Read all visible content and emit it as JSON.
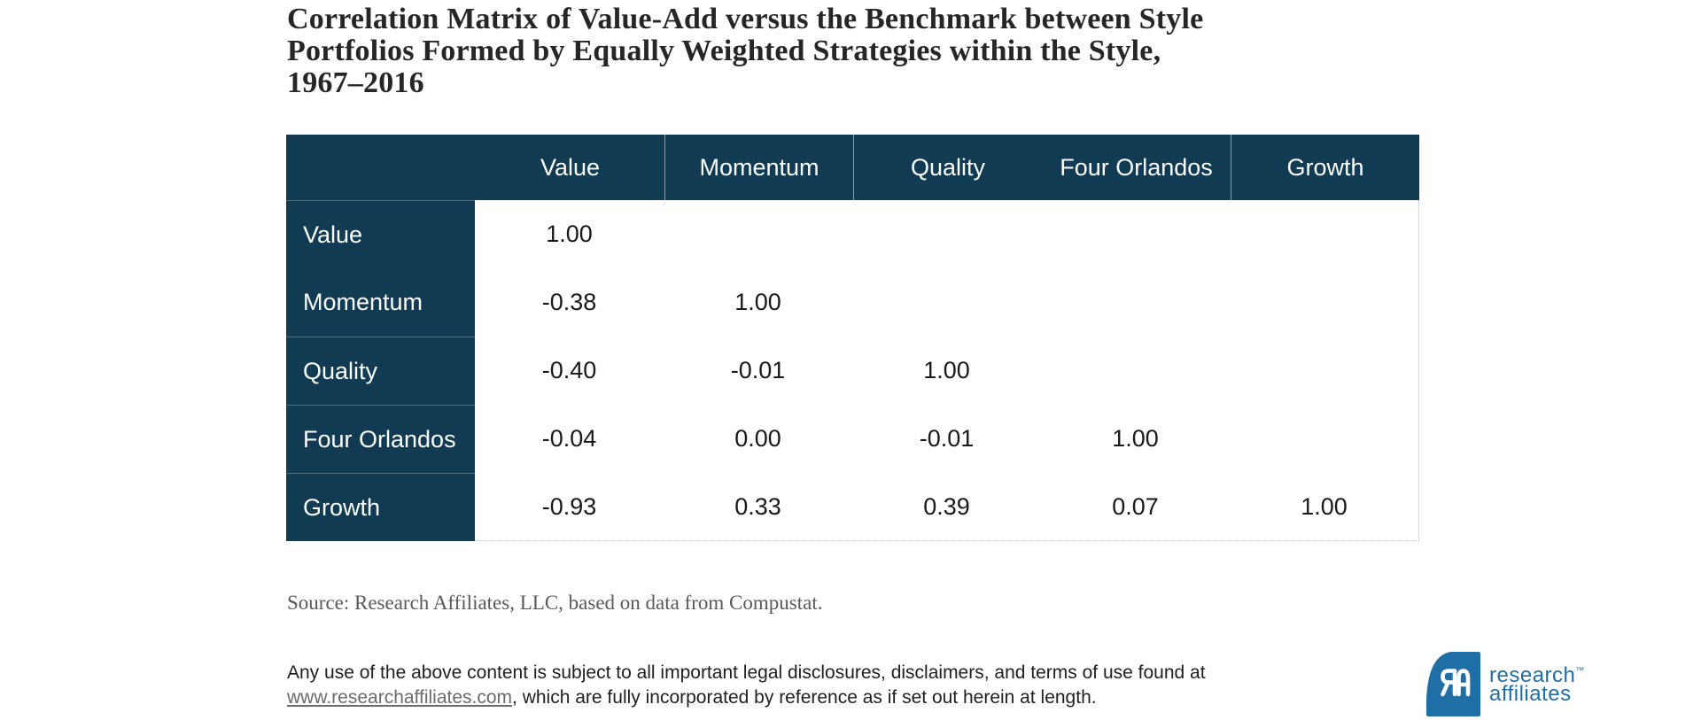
{
  "colors": {
    "navy": "#113a53",
    "logo_blue": "#1f6ea6",
    "data_text": "#191919",
    "title_text": "#262626",
    "source_text": "#595959",
    "legal_text": "#1f1f1f",
    "link_text": "#6b6b6b",
    "table_border": "#d8d8d8"
  },
  "title": {
    "lines": [
      "Correlation Matrix of Value-Add versus the Benchmark between Style",
      "Portfolios Formed by Equally Weighted Strategies within the Style,",
      "1967–2016"
    ]
  },
  "table": {
    "columns": [
      "Value",
      "Momentum",
      "Quality",
      "Four Orlandos",
      "Growth"
    ],
    "rows": [
      {
        "label": "Value",
        "values": [
          "1.00",
          "",
          "",
          "",
          ""
        ]
      },
      {
        "label": "Momentum",
        "values": [
          "-0.38",
          "1.00",
          "",
          "",
          ""
        ]
      },
      {
        "label": "Quality",
        "values": [
          "-0.40",
          "-0.01",
          "1.00",
          "",
          ""
        ]
      },
      {
        "label": "Four Orlandos",
        "values": [
          "-0.04",
          "0.00",
          "-0.01",
          "1.00",
          ""
        ]
      },
      {
        "label": "Growth",
        "values": [
          "-0.93",
          "0.33",
          "0.39",
          "0.07",
          "1.00"
        ]
      }
    ]
  },
  "source": {
    "text": "Source: Research Affiliates, LLC, based on data from Compustat."
  },
  "legal": {
    "prefix": "Any use of the above content is subject to all important legal disclosures, disclaimers, and terms of use found at",
    "link": "www.researchaffiliates.com",
    "suffix": ", which are fully incorporated by reference as if set out herein at length."
  },
  "logo": {
    "line1": "research",
    "line2": "affiliates",
    "trademark": "™",
    "monogram": "RA"
  },
  "chart_data": {
    "type": "table",
    "subtype": "correlation_matrix",
    "title": "Correlation Matrix of Value-Add versus the Benchmark between Style Portfolios Formed by Equally Weighted Strategies within the Style, 1967–2016",
    "columns": [
      "Value",
      "Momentum",
      "Quality",
      "Four Orlandos",
      "Growth"
    ],
    "rows": [
      "Value",
      "Momentum",
      "Quality",
      "Four Orlandos",
      "Growth"
    ],
    "matrix": [
      [
        1.0,
        null,
        null,
        null,
        null
      ],
      [
        -0.38,
        1.0,
        null,
        null,
        null
      ],
      [
        -0.4,
        -0.01,
        1.0,
        null,
        null
      ],
      [
        -0.04,
        0.0,
        -0.01,
        1.0,
        null
      ],
      [
        -0.93,
        0.33,
        0.39,
        0.07,
        1.0
      ]
    ],
    "source": "Source: Research Affiliates, LLC, based on data from Compustat.",
    "layout_hints": {
      "lower_triangular_only": true,
      "header_background": "#113a53",
      "row_label_background": "#113a53",
      "grid": "off"
    }
  }
}
